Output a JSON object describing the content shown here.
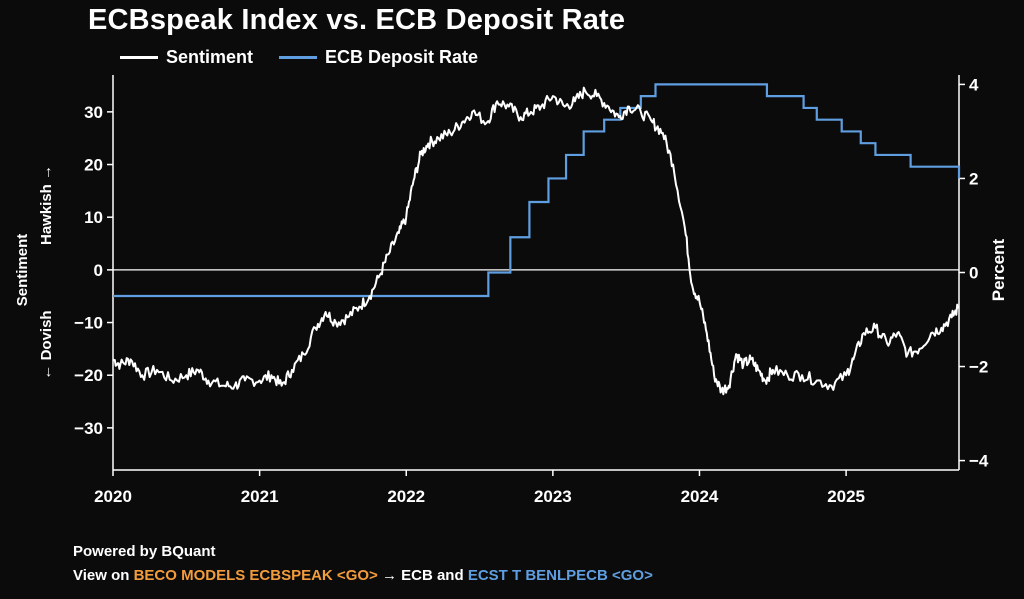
{
  "chart_data": {
    "type": "line",
    "title": "ECBspeak Index vs. ECB Deposit Rate",
    "ylabel_left": "Sentiment",
    "ylabel_left_hawkish": "Hawkish →",
    "ylabel_left_dovish": "← Dovish",
    "ylabel_right": "Percent",
    "x_ticks": [
      "2020",
      "2021",
      "2022",
      "2023",
      "2024",
      "2025"
    ],
    "xlim": [
      2020.0,
      2025.77
    ],
    "ylim_left": [
      -38,
      37
    ],
    "ylim_right": [
      -4.2,
      4.2
    ],
    "y_ticks_left": [
      30,
      20,
      10,
      0,
      -10,
      -20,
      -30
    ],
    "y_ticks_left_labels": [
      "30",
      "20",
      "10",
      "0",
      "−10",
      "−20",
      "−30"
    ],
    "y_ticks_right": [
      4,
      2,
      0,
      -2,
      -4
    ],
    "y_ticks_right_labels": [
      "4",
      "2",
      "0",
      "−2",
      "−4"
    ],
    "zero_line": true,
    "grid": false,
    "legend_position": "top-left",
    "series": [
      {
        "name": "Sentiment",
        "axis": "left",
        "color": "#ffffff",
        "x": [
          2020.0,
          2020.05,
          2020.12,
          2020.2,
          2020.3,
          2020.4,
          2020.5,
          2020.58,
          2020.65,
          2020.75,
          2020.83,
          2020.9,
          2021.0,
          2021.08,
          2021.15,
          2021.22,
          2021.3,
          2021.38,
          2021.45,
          2021.52,
          2021.6,
          2021.68,
          2021.75,
          2021.82,
          2021.88,
          2021.95,
          2022.0,
          2022.05,
          2022.1,
          2022.15,
          2022.22,
          2022.3,
          2022.38,
          2022.45,
          2022.55,
          2022.62,
          2022.7,
          2022.78,
          2022.85,
          2022.92,
          2023.0,
          2023.08,
          2023.15,
          2023.22,
          2023.3,
          2023.38,
          2023.45,
          2023.52,
          2023.6,
          2023.68,
          2023.75,
          2023.82,
          2023.9,
          2023.95,
          2024.0,
          2024.05,
          2024.1,
          2024.15,
          2024.2,
          2024.25,
          2024.3,
          2024.35,
          2024.4,
          2024.45,
          2024.5,
          2024.6,
          2024.7,
          2024.8,
          2024.9,
          2025.0,
          2025.05,
          2025.12,
          2025.2,
          2025.28,
          2025.35,
          2025.42,
          2025.5,
          2025.58,
          2025.65,
          2025.72,
          2025.77
        ],
        "values": [
          -17,
          -18,
          -17,
          -20,
          -19,
          -21,
          -20,
          -19,
          -21,
          -22,
          -22,
          -21,
          -21,
          -20,
          -22,
          -19,
          -16,
          -11,
          -8,
          -10,
          -9,
          -7,
          -5,
          -1,
          3,
          7,
          10,
          17,
          22,
          24,
          25,
          26,
          28,
          30,
          28,
          32,
          31,
          29,
          30,
          31,
          33,
          31,
          32,
          34,
          33,
          31,
          29,
          31,
          30,
          28,
          26,
          20,
          8,
          -3,
          -6,
          -12,
          -20,
          -23,
          -22,
          -16,
          -18,
          -17,
          -19,
          -21,
          -19,
          -20,
          -20,
          -21,
          -22,
          -20,
          -17,
          -12,
          -11,
          -14,
          -12,
          -16,
          -15,
          -12,
          -11,
          -9,
          -7
        ]
      },
      {
        "name": "ECB Deposit Rate",
        "axis": "right",
        "color": "#5f9ee0",
        "step": true,
        "x": [
          2020.0,
          2022.56,
          2022.71,
          2022.84,
          2022.97,
          2023.09,
          2023.21,
          2023.35,
          2023.46,
          2023.6,
          2023.7,
          2024.46,
          2024.71,
          2024.8,
          2024.97,
          2025.1,
          2025.2,
          2025.44,
          2025.77
        ],
        "values": [
          -0.5,
          0.0,
          0.75,
          1.5,
          2.0,
          2.5,
          3.0,
          3.25,
          3.5,
          3.75,
          4.0,
          3.75,
          3.5,
          3.25,
          3.0,
          2.75,
          2.5,
          2.25,
          2.0
        ]
      }
    ]
  },
  "footer": {
    "line1": "Powered by BQuant",
    "view_on": "View on ",
    "command1": "BECO MODELS ECBSPEAK <GO>",
    "arrow_text": " → ECB and ",
    "command2": "ECST T BENLPECB <GO>"
  }
}
